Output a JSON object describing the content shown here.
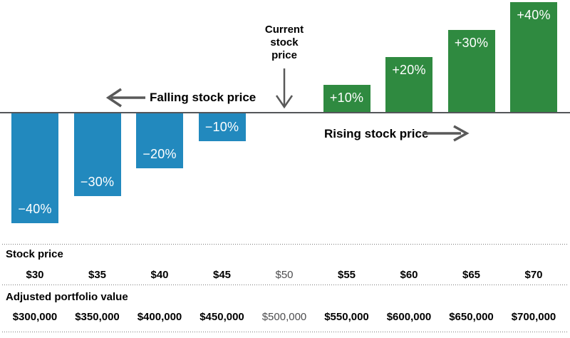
{
  "chart_data": {
    "type": "bar",
    "categories": [
      "$30",
      "$35",
      "$40",
      "$45",
      "$50",
      "$55",
      "$60",
      "$65",
      "$70"
    ],
    "values": [
      -40,
      -30,
      -20,
      -10,
      0,
      10,
      20,
      30,
      40
    ],
    "bar_labels": [
      "−40%",
      "−30%",
      "−20%",
      "−10%",
      "",
      "+10%",
      "+20%",
      "+30%",
      "+40%"
    ],
    "ylim": [
      -45,
      45
    ],
    "ylabel": "",
    "xlabel": "",
    "grid": false,
    "legend": "none",
    "annotations": [
      "Current stock price",
      "Falling stock price",
      "Rising stock price"
    ],
    "adjusted_portfolio_values": [
      300000,
      350000,
      400000,
      450000,
      500000,
      550000,
      600000,
      650000,
      700000
    ],
    "colors": {
      "negative_bar": "#2289BE",
      "positive_bar": "#2F8A40",
      "axis": "#54565A",
      "arrow": "#595959",
      "bar_label_text": "#FFFFFF",
      "label_text": "#000000",
      "muted_text": "#4D4D4F"
    }
  },
  "annotations": {
    "current_lines": [
      "Current",
      "stock",
      "price"
    ],
    "falling": "Falling stock price",
    "rising": "Rising stock price"
  },
  "table": {
    "stock_price_header": "Stock price",
    "stock_prices": [
      "$30",
      "$35",
      "$40",
      "$45",
      "$50",
      "$55",
      "$60",
      "$65",
      "$70"
    ],
    "portfolio_header": "Adjusted portfolio value",
    "portfolio_values": [
      "$300,000",
      "$350,000",
      "$400,000",
      "$450,000",
      "$500,000",
      "$550,000",
      "$600,000",
      "$650,000",
      "$700,000"
    ],
    "muted_column_index": 4
  }
}
